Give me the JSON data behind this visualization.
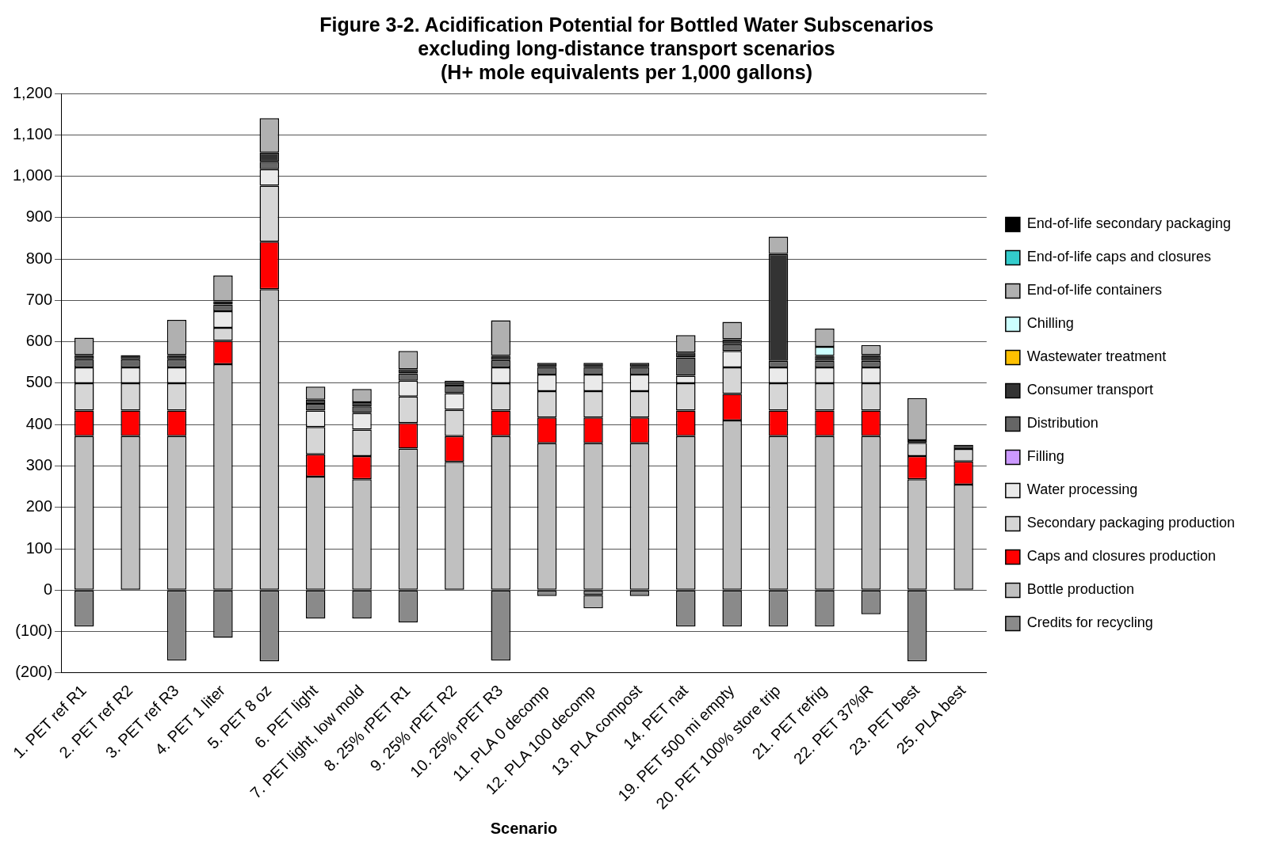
{
  "chart_data": {
    "type": "bar",
    "stacked": true,
    "title": "Figure 3-2. Acidification Potential for Bottled Water Subscenarios\nexcluding long-distance transport scenarios\n(H+ mole equivalents per 1,000 gallons)",
    "xlabel": "Scenario",
    "categories": [
      "1. PET ref R1",
      "2. PET ref R2",
      "3. PET ref R3",
      "4. PET 1 liter",
      "5. PET 8 oz",
      "6. PET light",
      "7. PET light, low mold",
      "8. 25% rPET R1",
      "9. 25% rPET R2",
      "10. 25% rPET R3",
      "11. PLA 0 decomp",
      "12. PLA 100 decomp",
      "13. PLA compost",
      "14. PET nat",
      "19. PET 500 mi empty",
      "20. PET 100% store trip",
      "21. PET refrig",
      "22. PET 37%R",
      "23. PET best",
      "25. PLA best"
    ],
    "series": [
      {
        "name": "Credits for recycling",
        "color": "#8a8a8a",
        "values": [
          -88,
          0,
          -170,
          -115,
          -172,
          -68,
          -68,
          -78,
          0,
          -170,
          -14,
          -12,
          -14,
          -88,
          -88,
          -88,
          -88,
          -58,
          -172,
          0
        ]
      },
      {
        "name": "Bottle production",
        "color": "#c0c0c0",
        "values": [
          372,
          372,
          372,
          546,
          727,
          274,
          268,
          342,
          310,
          372,
          355,
          355,
          355,
          372,
          410,
          372,
          372,
          372,
          268,
          255
        ]
      },
      {
        "name": "Caps and closures production",
        "color": "#ff0000",
        "values": [
          62,
          62,
          62,
          56,
          115,
          54,
          56,
          62,
          62,
          62,
          62,
          62,
          62,
          62,
          64,
          62,
          62,
          62,
          56,
          56
        ]
      },
      {
        "name": "Secondary packaging production",
        "color": "#d6d6d6",
        "values": [
          66,
          66,
          66,
          32,
          135,
          66,
          64,
          64,
          64,
          66,
          64,
          64,
          64,
          66,
          64,
          66,
          66,
          66,
          32,
          30
        ]
      },
      {
        "name": "Water processing",
        "color": "#eaeaea",
        "values": [
          38,
          38,
          38,
          40,
          40,
          40,
          40,
          38,
          40,
          38,
          40,
          40,
          40,
          18,
          40,
          38,
          38,
          38,
          0,
          0
        ]
      },
      {
        "name": "Filling",
        "color": "#cc99ff",
        "values": [
          0,
          0,
          0,
          0,
          0,
          0,
          0,
          0,
          0,
          0,
          0,
          0,
          0,
          0,
          0,
          0,
          0,
          0,
          0,
          0
        ]
      },
      {
        "name": "Distribution",
        "color": "#666666",
        "values": [
          20,
          20,
          20,
          16,
          18,
          16,
          16,
          18,
          18,
          18,
          18,
          18,
          18,
          44,
          16,
          16,
          16,
          16,
          0,
          0
        ]
      },
      {
        "name": "Consumer transport",
        "color": "#333333",
        "values": [
          10,
          10,
          10,
          8,
          22,
          10,
          10,
          10,
          12,
          10,
          10,
          10,
          10,
          12,
          12,
          258,
          12,
          14,
          6,
          10
        ]
      },
      {
        "name": "Wastewater treatment",
        "color": "#ffc000",
        "values": [
          0,
          0,
          0,
          0,
          0,
          0,
          0,
          0,
          0,
          0,
          0,
          0,
          0,
          0,
          0,
          0,
          0,
          0,
          0,
          0
        ]
      },
      {
        "name": "Chilling",
        "color": "#ccffff",
        "values": [
          0,
          0,
          0,
          0,
          0,
          0,
          0,
          0,
          0,
          0,
          0,
          0,
          0,
          0,
          0,
          0,
          22,
          0,
          0,
          0
        ]
      },
      {
        "name": "End-of-life containers",
        "color": "#b0b0b0",
        "values": [
          42,
          0,
          85,
          62,
          83,
          32,
          32,
          44,
          0,
          86,
          0,
          -32,
          0,
          42,
          42,
          42,
          44,
          24,
          102,
          0
        ]
      },
      {
        "name": "End-of-life caps and closures",
        "color": "#33cccc",
        "values": [
          0,
          0,
          0,
          0,
          0,
          0,
          0,
          0,
          0,
          0,
          0,
          0,
          0,
          0,
          0,
          0,
          0,
          0,
          0,
          0
        ]
      },
      {
        "name": "End-of-life secondary packaging",
        "color": "#000000",
        "values": [
          0,
          0,
          0,
          0,
          0,
          0,
          0,
          0,
          0,
          0,
          0,
          0,
          0,
          0,
          0,
          0,
          0,
          0,
          0,
          0
        ]
      }
    ],
    "ylim": [
      -200,
      1200
    ],
    "yticks": [
      {
        "value": -200,
        "label": "(200)"
      },
      {
        "value": -100,
        "label": "(100)"
      },
      0,
      100,
      200,
      300,
      400,
      500,
      600,
      700,
      800,
      900,
      {
        "value": 1000,
        "label": "1,000"
      },
      {
        "value": 1100,
        "label": "1,100"
      },
      {
        "value": 1200,
        "label": "1,200"
      }
    ],
    "grid": "y",
    "legend": "right"
  }
}
